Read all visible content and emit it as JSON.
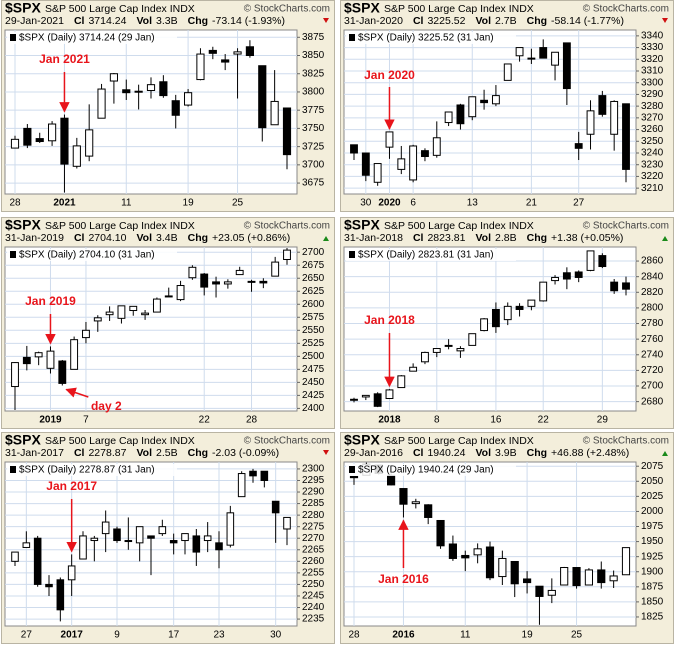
{
  "chart_data": [
    {
      "type": "candlestick",
      "title": "$SPX",
      "subtitle": "S&P 500 Large Cap Index INDX",
      "source": "© StockCharts.com",
      "date": "29-Jan-2021",
      "stats": [
        {
          "label": "Cl",
          "value": "3714.24"
        },
        {
          "label": "Vol",
          "value": "3.3B"
        },
        {
          "label": "Chg",
          "value": "-73.14 (-1.93%)"
        }
      ],
      "legend": "$SPX (Daily) 3714.24 (29 Jan)",
      "up_color": "#ffffff",
      "down_color": "#000000",
      "categories": [
        "28",
        null,
        null,
        null,
        "2021",
        null,
        null,
        null,
        null,
        "11",
        null,
        null,
        null,
        null,
        "19",
        null,
        null,
        null,
        "25",
        null,
        null,
        null,
        null
      ],
      "open": [
        3723,
        3750,
        3736,
        3733,
        3764,
        3698,
        3712,
        3764,
        3815,
        3803,
        3801,
        3802,
        3814,
        3788,
        3782,
        3817,
        3857,
        3844,
        3852,
        3862,
        3836,
        3755,
        3778
      ],
      "high": [
        3740,
        3756,
        3744,
        3760,
        3769,
        3737,
        3783,
        3811,
        3826,
        3817,
        3810,
        3820,
        3823,
        3796,
        3804,
        3860,
        3862,
        3852,
        3860,
        3871,
        3836,
        3830,
        3778
      ],
      "low": [
        3723,
        3723,
        3730,
        3726,
        3662,
        3695,
        3705,
        3764,
        3784,
        3789,
        3776,
        3791,
        3792,
        3750,
        3780,
        3816,
        3845,
        3830,
        3791,
        3847,
        3732,
        3755,
        3694
      ],
      "close": [
        3735,
        3727,
        3732,
        3756,
        3701,
        3726,
        3748,
        3804,
        3825,
        3799,
        3801,
        3810,
        3795,
        3768,
        3799,
        3852,
        3853,
        3841,
        3855,
        3850,
        3751,
        3787,
        3714
      ],
      "ylim": [
        3660,
        3885
      ],
      "yticks": [
        3675,
        3700,
        3725,
        3750,
        3775,
        3800,
        3825,
        3850,
        3875
      ],
      "annotations": [
        {
          "text": "Jan 2021"
        }
      ]
    },
    {
      "type": "candlestick",
      "title": "$SPX",
      "subtitle": "S&P 500 Large Cap Index INDX",
      "source": "© StockCharts.com",
      "date": "31-Jan-2020",
      "stats": [
        {
          "label": "Cl",
          "value": "3225.52"
        },
        {
          "label": "Vol",
          "value": "2.7B"
        },
        {
          "label": "Chg",
          "value": "-58.14 (-1.77%)"
        }
      ],
      "legend": "$SPX (Daily) 3225.52 (31 Jan)",
      "up_color": "#ffffff",
      "down_color": "#000000",
      "categories": [
        null,
        "30",
        null,
        "2020",
        null,
        "6",
        null,
        null,
        null,
        null,
        "13",
        null,
        null,
        null,
        null,
        "21",
        null,
        null,
        null,
        "27",
        null,
        null,
        null,
        null
      ],
      "open": [
        3247,
        3240,
        3215,
        3245,
        3226,
        3217,
        3242,
        3238,
        3266,
        3281,
        3271,
        3285,
        3282,
        3302,
        3323,
        3321,
        3330,
        3315,
        3334,
        3248,
        3256,
        3289,
        3256,
        3282
      ],
      "high": [
        3247,
        3240,
        3231,
        3258,
        3246,
        3247,
        3244,
        3267,
        3275,
        3282,
        3288,
        3294,
        3298,
        3316,
        3330,
        3329,
        3337,
        3326,
        3334,
        3258,
        3285,
        3293,
        3285,
        3282
      ],
      "low": [
        3234,
        3216,
        3212,
        3235,
        3222,
        3215,
        3233,
        3236,
        3263,
        3260,
        3268,
        3277,
        3280,
        3302,
        3318,
        3316,
        3321,
        3302,
        3281,
        3234,
        3243,
        3271,
        3242,
        3215
      ],
      "close": [
        3240,
        3221,
        3231,
        3258,
        3235,
        3246,
        3237,
        3253,
        3275,
        3265,
        3288,
        3283,
        3289,
        3316,
        3330,
        3321,
        3321,
        3326,
        3295,
        3244,
        3276,
        3273,
        3284,
        3226
      ],
      "ylim": [
        3205,
        3345
      ],
      "yticks": [
        3210,
        3220,
        3230,
        3240,
        3250,
        3260,
        3270,
        3280,
        3290,
        3300,
        3310,
        3320,
        3330,
        3340
      ],
      "annotations": [
        {
          "text": "Jan 2020"
        }
      ]
    },
    {
      "type": "candlestick",
      "title": "$SPX",
      "subtitle": "S&P 500 Large Cap Index INDX",
      "source": "© StockCharts.com",
      "date": "31-Jan-2019",
      "stats": [
        {
          "label": "Cl",
          "value": "2704.10"
        },
        {
          "label": "Vol",
          "value": "3.4B"
        },
        {
          "label": "Chg",
          "value": "+23.05 (+0.86%)"
        }
      ],
      "legend": "$SPX (Daily) 2704.10 (31 Jan)",
      "up_color": "#ffffff",
      "down_color": "#000000",
      "categories": [
        null,
        null,
        null,
        "2019",
        null,
        null,
        "7",
        null,
        null,
        null,
        null,
        null,
        null,
        null,
        null,
        null,
        "22",
        null,
        null,
        null,
        "28",
        null,
        null,
        null
      ],
      "open": [
        2442,
        2498,
        2499,
        2477,
        2491,
        2475,
        2536,
        2568,
        2580,
        2573,
        2588,
        2580,
        2585,
        2615,
        2609,
        2651,
        2658,
        2643,
        2639,
        2657,
        2644,
        2644,
        2654,
        2686
      ],
      "high": [
        2489,
        2520,
        2509,
        2519,
        2493,
        2538,
        2566,
        2579,
        2596,
        2597,
        2596,
        2589,
        2613,
        2632,
        2645,
        2675,
        2660,
        2653,
        2648,
        2672,
        2647,
        2650,
        2691,
        2708
      ],
      "low": [
        2397,
        2473,
        2483,
        2467,
        2444,
        2475,
        2525,
        2547,
        2568,
        2563,
        2578,
        2570,
        2585,
        2614,
        2606,
        2647,
        2617,
        2613,
        2630,
        2657,
        2624,
        2631,
        2654,
        2676
      ],
      "close": [
        2488,
        2486,
        2507,
        2510,
        2448,
        2532,
        2550,
        2574,
        2585,
        2597,
        2596,
        2583,
        2610,
        2616,
        2636,
        2671,
        2633,
        2639,
        2643,
        2665,
        2644,
        2641,
        2681,
        2704
      ],
      "ylim": [
        2395,
        2710
      ],
      "yticks": [
        2400,
        2425,
        2450,
        2475,
        2500,
        2525,
        2550,
        2575,
        2600,
        2625,
        2650,
        2675,
        2700
      ],
      "annotations": [
        {
          "text": "Jan 2019"
        },
        {
          "text": "day 2"
        }
      ]
    },
    {
      "type": "candlestick",
      "title": "$SPX",
      "subtitle": "S&P 500 Large Cap Index INDX",
      "source": "© StockCharts.com",
      "date": "31-Jan-2018",
      "stats": [
        {
          "label": "Cl",
          "value": "2823.81"
        },
        {
          "label": "Vol",
          "value": "2.8B"
        },
        {
          "label": "Chg",
          "value": "+1.38 (+0.05%)"
        }
      ],
      "legend": "$SPX (Daily) 2823.81 (31 Jan)",
      "up_color": "#ffffff",
      "down_color": "#000000",
      "categories": [
        null,
        null,
        null,
        "2018",
        null,
        null,
        null,
        "8",
        null,
        null,
        null,
        null,
        "16",
        null,
        null,
        null,
        "22",
        null,
        null,
        null,
        null,
        "29",
        null,
        null
      ],
      "open": [
        2682,
        2686,
        2690,
        2684,
        2698,
        2719,
        2731,
        2743,
        2752,
        2745,
        2752,
        2771,
        2798,
        2785,
        2802,
        2802,
        2809,
        2835,
        2845,
        2846,
        2848,
        2867,
        2833,
        2832
      ],
      "high": [
        2685,
        2688,
        2692,
        2696,
        2714,
        2729,
        2744,
        2748,
        2760,
        2751,
        2767,
        2787,
        2807,
        2807,
        2806,
        2810,
        2833,
        2842,
        2852,
        2848,
        2873,
        2870,
        2837,
        2840
      ],
      "low": [
        2679,
        2682,
        2673,
        2684,
        2698,
        2719,
        2728,
        2737,
        2747,
        2736,
        2752,
        2770,
        2768,
        2778,
        2789,
        2797,
        2808,
        2830,
        2824,
        2833,
        2847,
        2851,
        2818,
        2816
      ],
      "close": [
        2683,
        2688,
        2674,
        2695,
        2713,
        2724,
        2743,
        2748,
        2751,
        2748,
        2767,
        2786,
        2776,
        2802,
        2798,
        2810,
        2833,
        2839,
        2837,
        2839,
        2873,
        2853,
        2822,
        2824
      ],
      "ylim": [
        2668,
        2878
      ],
      "yticks": [
        2680,
        2700,
        2720,
        2740,
        2760,
        2780,
        2800,
        2820,
        2840,
        2860
      ],
      "annotations": [
        {
          "text": "Jan 2018"
        }
      ]
    },
    {
      "type": "candlestick",
      "title": "$SPX",
      "subtitle": "S&P 500 Large Cap Index INDX",
      "source": "© StockCharts.com",
      "date": "31-Jan-2017",
      "stats": [
        {
          "label": "Cl",
          "value": "2278.87"
        },
        {
          "label": "Vol",
          "value": "2.5B"
        },
        {
          "label": "Chg",
          "value": "-2.03 (-0.09%)"
        }
      ],
      "legend": "$SPX (Daily) 2278.87 (31 Jan)",
      "up_color": "#ffffff",
      "down_color": "#000000",
      "categories": [
        null,
        "27",
        null,
        null,
        null,
        "2017",
        null,
        null,
        null,
        "9",
        null,
        null,
        null,
        null,
        "17",
        null,
        null,
        null,
        "23",
        null,
        null,
        null,
        null,
        "30",
        null
      ],
      "open": [
        2260,
        2266,
        2270,
        2250,
        2252,
        2252,
        2261,
        2269,
        2272,
        2274,
        2269,
        2268,
        2271,
        2272,
        2269,
        2269,
        2271,
        2269,
        2268,
        2267,
        2288,
        2299,
        2299,
        2286,
        2274
      ],
      "high": [
        2264,
        2273,
        2271,
        2254,
        2253,
        2263,
        2273,
        2271,
        2282,
        2275,
        2279,
        2275,
        2271,
        2278,
        2272,
        2272,
        2274,
        2277,
        2273,
        2284,
        2299,
        2300,
        2299,
        2286,
        2279
      ],
      "low": [
        2258,
        2266,
        2249,
        2245,
        2234,
        2245,
        2261,
        2260,
        2264,
        2268,
        2265,
        2260,
        2254,
        2271,
        2263,
        2263,
        2258,
        2264,
        2257,
        2266,
        2288,
        2294,
        2292,
        2268,
        2267
      ],
      "close": [
        2264,
        2268,
        2250,
        2249,
        2239,
        2258,
        2271,
        2270,
        2277,
        2269,
        2269,
        2275,
        2270,
        2275,
        2268,
        2272,
        2264,
        2271,
        2265,
        2281,
        2298,
        2297,
        2295,
        2281,
        2279
      ],
      "ylim": [
        2232,
        2303
      ],
      "yticks": [
        2235,
        2240,
        2245,
        2250,
        2255,
        2260,
        2265,
        2270,
        2275,
        2280,
        2285,
        2290,
        2295,
        2300
      ],
      "annotations": [
        {
          "text": "Jan 2017"
        }
      ]
    },
    {
      "type": "candlestick",
      "title": "$SPX",
      "subtitle": "S&P 500 Large Cap Index INDX",
      "source": "© StockCharts.com",
      "date": "29-Jan-2016",
      "stats": [
        {
          "label": "Cl",
          "value": "1940.24"
        },
        {
          "label": "Vol",
          "value": "3.9B"
        },
        {
          "label": "Chg",
          "value": "+46.88 (+2.48%)"
        }
      ],
      "legend": "$SPX (Daily) 1940.24 (29 Jan)",
      "up_color": "#ffffff",
      "down_color": "#000000",
      "categories": [
        "28",
        null,
        null,
        null,
        "2016",
        null,
        null,
        null,
        null,
        "11",
        null,
        null,
        null,
        null,
        "19",
        null,
        null,
        null,
        "25",
        null,
        null,
        null,
        null
      ],
      "open": [
        2058,
        2060,
        2077,
        2060,
        2038,
        2013,
        2011,
        1985,
        1946,
        1927,
        1928,
        1941,
        1892,
        1917,
        1888,
        1876,
        1861,
        1878,
        1907,
        1878,
        1903,
        1885,
        1895
      ],
      "high": [
        2058,
        2081,
        2077,
        2063,
        2038,
        2021,
        2012,
        1985,
        1960,
        1935,
        1947,
        1950,
        1935,
        1917,
        1901,
        1876,
        1889,
        1908,
        1907,
        1906,
        1917,
        1902,
        1940
      ],
      "low": [
        2044,
        2060,
        2061,
        2043,
        1990,
        2005,
        1979,
        1938,
        1918,
        1901,
        1914,
        1886,
        1878,
        1858,
        1864,
        1812,
        1848,
        1878,
        1872,
        1878,
        1872,
        1873,
        1895
      ],
      "close": [
        2056,
        2078,
        2063,
        2044,
        2012,
        2016,
        1990,
        1943,
        1922,
        1923,
        1938,
        1890,
        1922,
        1880,
        1882,
        1859,
        1869,
        1907,
        1877,
        1903,
        1882,
        1893,
        1940
      ],
      "ylim": [
        1810,
        2082
      ],
      "yticks": [
        1825,
        1850,
        1875,
        1900,
        1925,
        1950,
        1975,
        2000,
        2025,
        2050,
        2075
      ],
      "annotations": [
        {
          "text": "Jan 2016"
        }
      ]
    }
  ]
}
